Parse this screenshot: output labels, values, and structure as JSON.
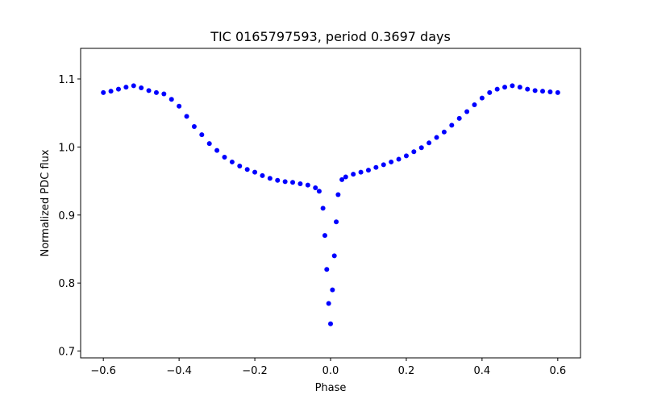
{
  "chart_data": {
    "type": "scatter",
    "title": "TIC 0165797593, period 0.3697 days",
    "xlabel": "Phase",
    "ylabel": "Normalized PDC flux",
    "xlim": [
      -0.66,
      0.66
    ],
    "ylim": [
      0.69,
      1.145
    ],
    "xticks": [
      -0.6,
      -0.4,
      -0.2,
      0.0,
      0.2,
      0.4,
      0.6
    ],
    "xtick_labels": [
      "−0.6",
      "−0.4",
      "−0.2",
      "0.0",
      "0.2",
      "0.4",
      "0.6"
    ],
    "yticks": [
      0.7,
      0.8,
      0.9,
      1.0,
      1.1
    ],
    "ytick_labels": [
      "0.7",
      "0.8",
      "0.9",
      "1.0",
      "1.1"
    ],
    "grid": false,
    "legend": "none",
    "point_color": "#0000ff",
    "series": [
      {
        "x": [
          -0.6,
          -0.58,
          -0.56,
          -0.54,
          -0.52,
          -0.5,
          -0.48,
          -0.46,
          -0.44,
          -0.42,
          -0.4,
          -0.38,
          -0.36,
          -0.34,
          -0.32,
          -0.3,
          -0.28,
          -0.26,
          -0.24,
          -0.22,
          -0.2,
          -0.18,
          -0.16,
          -0.14,
          -0.12,
          -0.1,
          -0.08,
          -0.06,
          -0.04,
          -0.03,
          -0.02,
          -0.015,
          -0.01,
          -0.005,
          0.0,
          0.005,
          0.01,
          0.015,
          0.02,
          0.03,
          0.04,
          0.06,
          0.08,
          0.1,
          0.12,
          0.14,
          0.16,
          0.18,
          0.2,
          0.22,
          0.24,
          0.26,
          0.28,
          0.3,
          0.32,
          0.34,
          0.36,
          0.38,
          0.4,
          0.42,
          0.44,
          0.46,
          0.48,
          0.5,
          0.52,
          0.54,
          0.56,
          0.58,
          0.6
        ],
        "y": [
          1.08,
          1.082,
          1.085,
          1.088,
          1.09,
          1.087,
          1.083,
          1.08,
          1.078,
          1.07,
          1.06,
          1.045,
          1.03,
          1.018,
          1.005,
          0.995,
          0.985,
          0.978,
          0.972,
          0.967,
          0.963,
          0.958,
          0.954,
          0.951,
          0.949,
          0.948,
          0.946,
          0.944,
          0.94,
          0.935,
          0.91,
          0.87,
          0.82,
          0.77,
          0.74,
          0.79,
          0.84,
          0.89,
          0.93,
          0.952,
          0.956,
          0.96,
          0.963,
          0.966,
          0.97,
          0.974,
          0.978,
          0.982,
          0.987,
          0.993,
          0.999,
          1.006,
          1.014,
          1.022,
          1.032,
          1.042,
          1.052,
          1.062,
          1.072,
          1.08,
          1.085,
          1.088,
          1.09,
          1.088,
          1.085,
          1.083,
          1.082,
          1.081,
          1.08
        ]
      }
    ]
  }
}
